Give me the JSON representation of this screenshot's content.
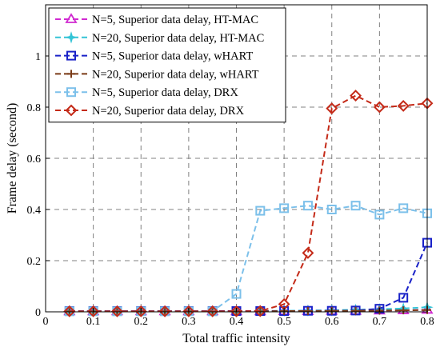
{
  "chart_data": {
    "type": "line",
    "title": "",
    "xlabel": "Total traffic intensity",
    "ylabel": "Frame delay (second)",
    "xlim": [
      0,
      0.8
    ],
    "ylim": [
      0,
      1.2
    ],
    "xticks": [
      0,
      0.1,
      0.2,
      0.3,
      0.4,
      0.5,
      0.6,
      0.7,
      0.8
    ],
    "xtick_labels": [
      "0",
      "0.1",
      "0.2",
      "0.3",
      "0.4",
      "0.5",
      "0.6",
      "0.7",
      "0.8"
    ],
    "yticks": [
      0,
      0.2,
      0.4,
      0.6,
      0.8,
      1
    ],
    "ytick_labels": [
      "0",
      "0.2",
      "0.4",
      "0.6",
      "0.8",
      "1"
    ],
    "grid": true,
    "legend_position": "top-left",
    "x": [
      0.05,
      0.1,
      0.15,
      0.2,
      0.25,
      0.3,
      0.35,
      0.4,
      0.45,
      0.5,
      0.55,
      0.6,
      0.65,
      0.7,
      0.75,
      0.8
    ],
    "series": [
      {
        "name": "N=5, Superior data delay, HT-MAC",
        "color": "#d02ad0",
        "marker": "triangle",
        "values": [
          0.002,
          0.002,
          0.002,
          0.002,
          0.002,
          0.002,
          0.002,
          0.002,
          0.002,
          0.003,
          0.003,
          0.004,
          0.004,
          0.005,
          0.006,
          0.008
        ]
      },
      {
        "name": "N=20, Superior data delay, HT-MAC",
        "color": "#33c4d6",
        "marker": "star",
        "values": [
          0.002,
          0.002,
          0.002,
          0.002,
          0.002,
          0.002,
          0.002,
          0.002,
          0.003,
          0.004,
          0.005,
          0.006,
          0.008,
          0.01,
          0.013,
          0.018
        ]
      },
      {
        "name": "N=5, Superior data delay, wHART",
        "color": "#1a22c8",
        "marker": "square",
        "values": [
          0.003,
          0.003,
          0.003,
          0.003,
          0.003,
          0.003,
          0.003,
          0.003,
          0.003,
          0.003,
          0.004,
          0.004,
          0.005,
          0.012,
          0.055,
          0.27
        ]
      },
      {
        "name": "N=20, Superior data delay, wHART",
        "color": "#7a3a16",
        "marker": "plus",
        "values": [
          0.002,
          0.002,
          0.002,
          0.002,
          0.002,
          0.002,
          0.002,
          0.002,
          0.002,
          0.003,
          0.003,
          0.004,
          0.004,
          0.005,
          0.006,
          0.007
        ]
      },
      {
        "name": "N=5, Superior data delay, DRX",
        "color": "#7cc0ea",
        "marker": "square",
        "values": [
          0.002,
          0.002,
          0.002,
          0.002,
          0.002,
          0.002,
          0.002,
          0.07,
          0.395,
          0.405,
          0.415,
          0.4,
          0.415,
          0.38,
          0.405,
          0.385
        ]
      },
      {
        "name": "N=20, Superior data delay, DRX",
        "color": "#c42a18",
        "marker": "diamond",
        "values": [
          0.002,
          0.002,
          0.002,
          0.002,
          0.002,
          0.002,
          0.002,
          0.002,
          0.003,
          0.03,
          0.23,
          0.795,
          0.845,
          0.8,
          0.805,
          0.815
        ]
      }
    ]
  }
}
